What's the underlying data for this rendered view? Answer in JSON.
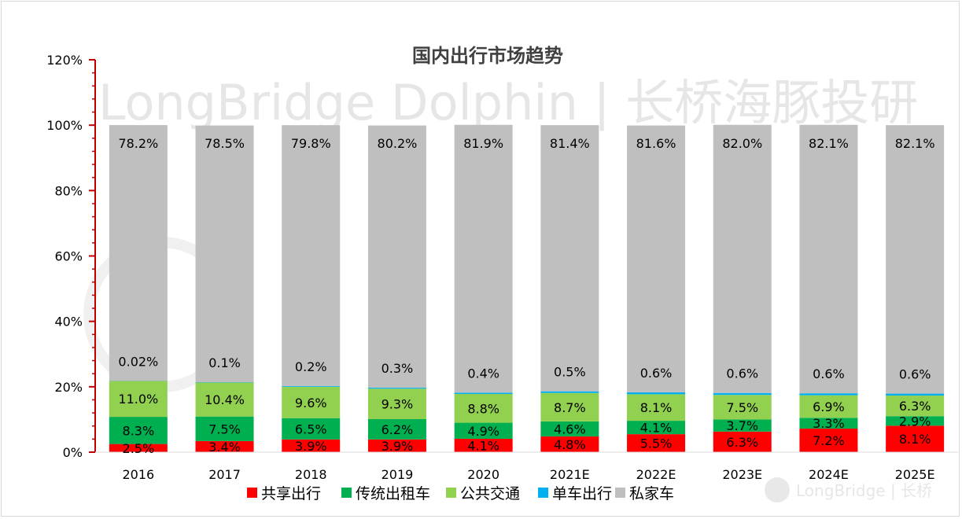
{
  "chart_data": {
    "type": "bar",
    "stacked": true,
    "title": "国内出行市场趋势",
    "categories": [
      "2016",
      "2017",
      "2018",
      "2019",
      "2020",
      "2021E",
      "2022E",
      "2023E",
      "2024E",
      "2025E"
    ],
    "ylim": [
      0,
      120
    ],
    "yticks": [
      "0%",
      "20%",
      "40%",
      "60%",
      "80%",
      "100%",
      "120%"
    ],
    "ytick_values": [
      0,
      20,
      40,
      60,
      80,
      100,
      120
    ],
    "grid": false,
    "legend_position": "bottom",
    "series": [
      {
        "name": "共享出行",
        "color": "#ff0000",
        "values": [
          2.5,
          3.4,
          3.9,
          3.9,
          4.1,
          4.8,
          5.5,
          6.3,
          7.2,
          8.1
        ],
        "labels": [
          "2.5%",
          "3.4%",
          "3.9%",
          "3.9%",
          "4.1%",
          "4.8%",
          "5.5%",
          "6.3%",
          "7.2%",
          "8.1%"
        ]
      },
      {
        "name": "传统出租车",
        "color": "#00b050",
        "values": [
          8.3,
          7.5,
          6.5,
          6.2,
          4.9,
          4.6,
          4.1,
          3.7,
          3.3,
          2.9
        ],
        "labels": [
          "8.3%",
          "7.5%",
          "6.5%",
          "6.2%",
          "4.9%",
          "4.6%",
          "4.1%",
          "3.7%",
          "3.3%",
          "2.9%"
        ]
      },
      {
        "name": "公共交通",
        "color": "#92d050",
        "values": [
          11.0,
          10.4,
          9.6,
          9.3,
          8.8,
          8.7,
          8.1,
          7.5,
          6.9,
          6.3
        ],
        "labels": [
          "11.0%",
          "10.4%",
          "9.6%",
          "9.3%",
          "8.8%",
          "8.7%",
          "8.1%",
          "7.5%",
          "6.9%",
          "6.3%"
        ]
      },
      {
        "name": "单车出行",
        "color": "#00b0f0",
        "values": [
          0.02,
          0.1,
          0.2,
          0.3,
          0.4,
          0.5,
          0.6,
          0.6,
          0.6,
          0.6
        ],
        "labels": [
          "0.02%",
          "0.1%",
          "0.2%",
          "0.3%",
          "0.4%",
          "0.5%",
          "0.6%",
          "0.6%",
          "0.6%",
          "0.6%"
        ]
      },
      {
        "name": "私家车",
        "color": "#bfbfbf",
        "values": [
          78.2,
          78.5,
          79.8,
          80.2,
          81.9,
          81.4,
          81.6,
          82.0,
          82.1,
          82.1
        ],
        "labels": [
          "78.2%",
          "78.5%",
          "79.8%",
          "80.2%",
          "81.9%",
          "81.4%",
          "81.6%",
          "82.0%",
          "82.1%",
          "82.1%"
        ]
      }
    ]
  },
  "watermark": {
    "main_text": "LongBridge Dolphin | 长桥海豚投研",
    "corner_text": "LongBridge | 长桥",
    "color": "#e6e6e6"
  }
}
